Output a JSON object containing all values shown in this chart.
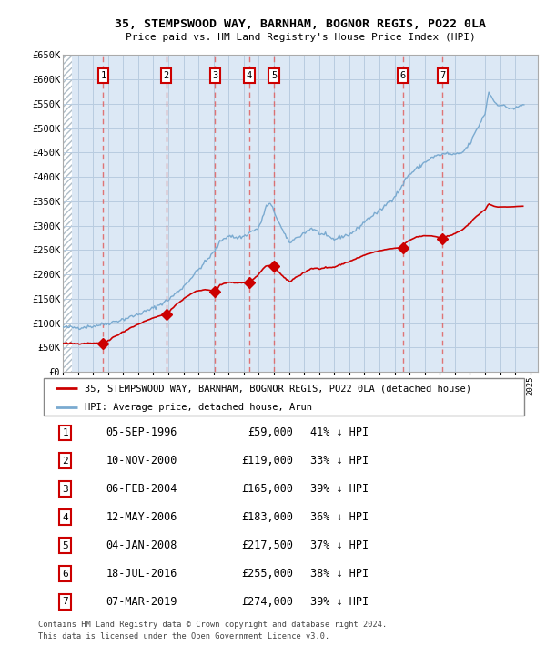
{
  "title": "35, STEMPSWOOD WAY, BARNHAM, BOGNOR REGIS, PO22 0LA",
  "subtitle": "Price paid vs. HM Land Registry's House Price Index (HPI)",
  "legend_line1": "35, STEMPSWOOD WAY, BARNHAM, BOGNOR REGIS, PO22 0LA (detached house)",
  "legend_line2": "HPI: Average price, detached house, Arun",
  "footer1": "Contains HM Land Registry data © Crown copyright and database right 2024.",
  "footer2": "This data is licensed under the Open Government Licence v3.0.",
  "ylim": [
    0,
    650000
  ],
  "yticks": [
    0,
    50000,
    100000,
    150000,
    200000,
    250000,
    300000,
    350000,
    400000,
    450000,
    500000,
    550000,
    600000,
    650000
  ],
  "ytick_labels": [
    "£0",
    "£50K",
    "£100K",
    "£150K",
    "£200K",
    "£250K",
    "£300K",
    "£350K",
    "£400K",
    "£450K",
    "£500K",
    "£550K",
    "£600K",
    "£650K"
  ],
  "xlim_start": 1994.0,
  "xlim_end": 2025.5,
  "transactions": [
    {
      "num": 1,
      "date": "05-SEP-1996",
      "price": 59000,
      "pct": "41%",
      "year_x": 1996.68
    },
    {
      "num": 2,
      "date": "10-NOV-2000",
      "price": 119000,
      "pct": "33%",
      "year_x": 2000.86
    },
    {
      "num": 3,
      "date": "06-FEB-2004",
      "price": 165000,
      "pct": "39%",
      "year_x": 2004.1
    },
    {
      "num": 4,
      "date": "12-MAY-2006",
      "price": 183000,
      "pct": "36%",
      "year_x": 2006.37
    },
    {
      "num": 5,
      "date": "04-JAN-2008",
      "price": 217500,
      "pct": "37%",
      "year_x": 2008.01
    },
    {
      "num": 6,
      "date": "18-JUL-2016",
      "price": 255000,
      "pct": "38%",
      "year_x": 2016.55
    },
    {
      "num": 7,
      "date": "07-MAR-2019",
      "price": 274000,
      "pct": "39%",
      "year_x": 2019.18
    }
  ],
  "bg_color": "#dce8f5",
  "hatch_color": "#b0bec8",
  "grid_color": "#b8cce0",
  "hpi_line_color": "#7aaad0",
  "price_line_color": "#cc0000",
  "marker_color": "#cc0000",
  "vline_color": "#e06060",
  "box_edge_color": "#cc0000",
  "box_fill": "#ffffff"
}
